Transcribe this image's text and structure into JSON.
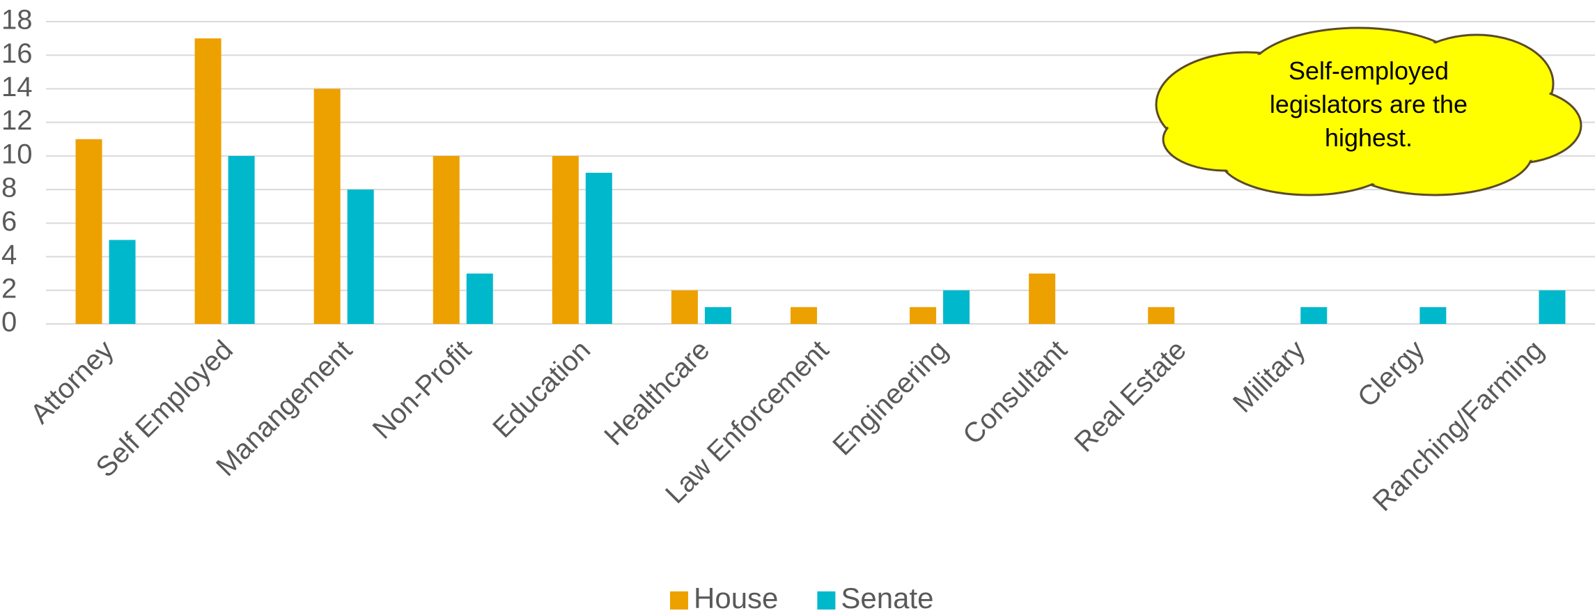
{
  "chart_data": {
    "type": "bar",
    "categories": [
      "Attorney",
      "Self Employed",
      "Manangement",
      "Non-Profit",
      "Education",
      "Healthcare",
      "Law Enforcement",
      "Engineering",
      "Consultant",
      "Real Estate",
      "Military",
      "Clergy",
      "Ranching/Farming"
    ],
    "series": [
      {
        "name": "House",
        "color": "#EDA100",
        "values": [
          11,
          17,
          14,
          10,
          10,
          2,
          1,
          1,
          3,
          1,
          0,
          0,
          0
        ]
      },
      {
        "name": "Senate",
        "color": "#00B8CC",
        "values": [
          5,
          10,
          8,
          3,
          9,
          1,
          0,
          2,
          0,
          0,
          1,
          1,
          2
        ]
      }
    ],
    "ylim": [
      0,
      18
    ],
    "yticks": [
      0,
      2,
      4,
      6,
      8,
      10,
      12,
      14,
      16,
      18
    ],
    "grid": true,
    "annotation": "Self-employed legislators are the highest."
  }
}
